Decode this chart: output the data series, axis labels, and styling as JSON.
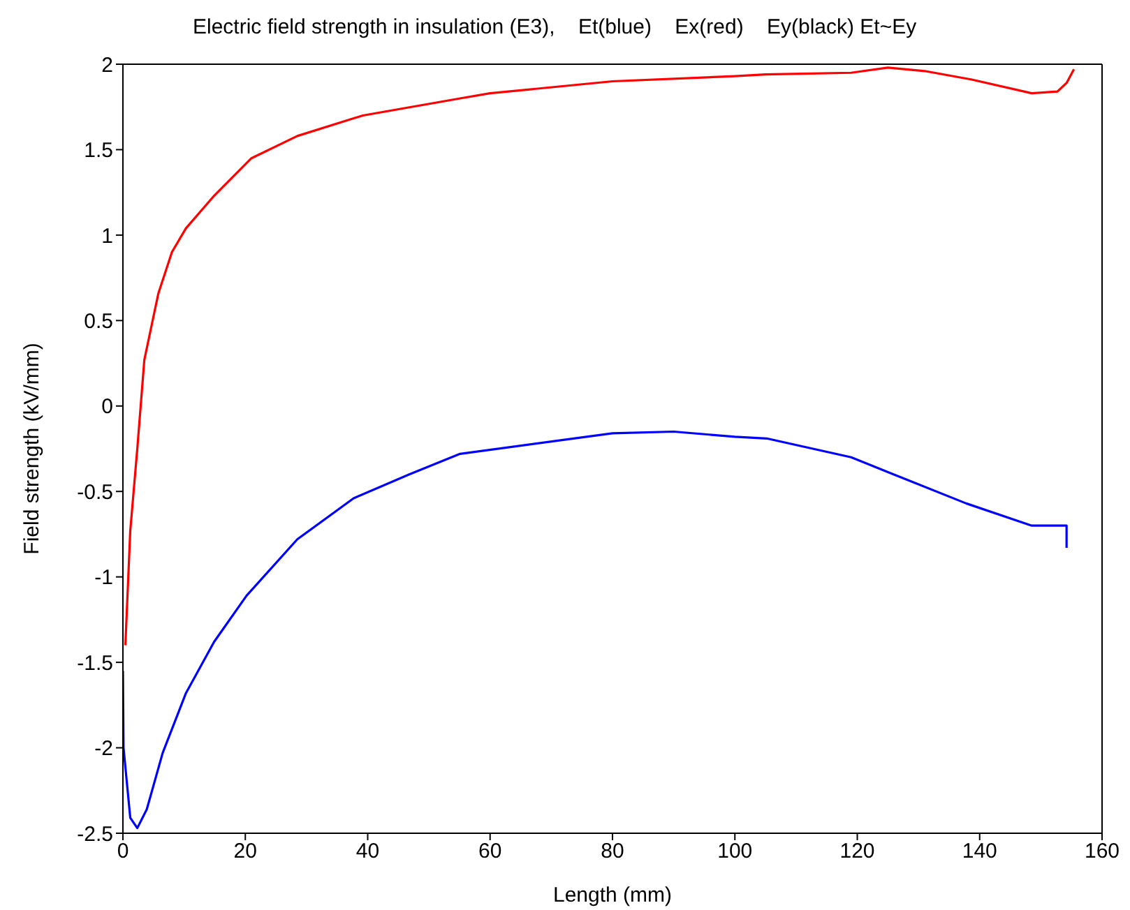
{
  "chart_data": {
    "type": "line",
    "title": "Electric field strength in insulation (E3),    Et(blue)    Ex(red)    Ey(black) Et~Ey",
    "xlabel": "Length (mm)",
    "ylabel": "Field strength (kV/mm)",
    "xlim": [
      0,
      160
    ],
    "xticks": [
      0,
      20,
      40,
      60,
      80,
      100,
      120,
      140,
      160
    ],
    "ylim": [
      -2.5,
      2
    ],
    "yticks": [
      -2.5,
      -2,
      -1.5,
      -1,
      -0.5,
      0,
      0.5,
      1,
      1.5,
      2
    ],
    "grid": false,
    "legend": false,
    "marker": "none",
    "line_style": "solid",
    "series": [
      {
        "color": "#ff0000",
        "x": [
          0.4,
          1.2,
          2.35,
          3.5,
          5.8,
          8,
          10.3,
          14.9,
          21,
          28.5,
          39.2,
          55.1,
          60,
          80,
          100,
          105,
          119,
          125,
          131,
          138.7,
          148.5,
          152.7,
          154.2,
          155.4
        ],
        "values": [
          -1.4,
          -0.73,
          -0.25,
          0.27,
          0.66,
          0.9,
          1.04,
          1.23,
          1.45,
          1.58,
          1.7,
          1.8,
          1.83,
          1.9,
          1.93,
          1.94,
          1.95,
          1.98,
          1.96,
          1.91,
          1.83,
          1.84,
          1.89,
          1.97
        ]
      },
      {
        "color": "#0000ff",
        "x": [
          0,
          0.1,
          1.2,
          2.35,
          3.9,
          6.5,
          10.3,
          14.9,
          20.2,
          28.5,
          37.7,
          46.8,
          55.1,
          80,
          90,
          100,
          105.2,
          119,
          128,
          137.8,
          148.5,
          154.2,
          154.2
        ],
        "values": [
          -1.55,
          -2.0,
          -2.41,
          -2.47,
          -2.36,
          -2.03,
          -1.68,
          -1.38,
          -1.11,
          -0.78,
          -0.54,
          -0.4,
          -0.28,
          -0.16,
          -0.15,
          -0.18,
          -0.19,
          -0.3,
          -0.43,
          -0.57,
          -0.7,
          -0.7,
          -0.83
        ]
      }
    ]
  }
}
